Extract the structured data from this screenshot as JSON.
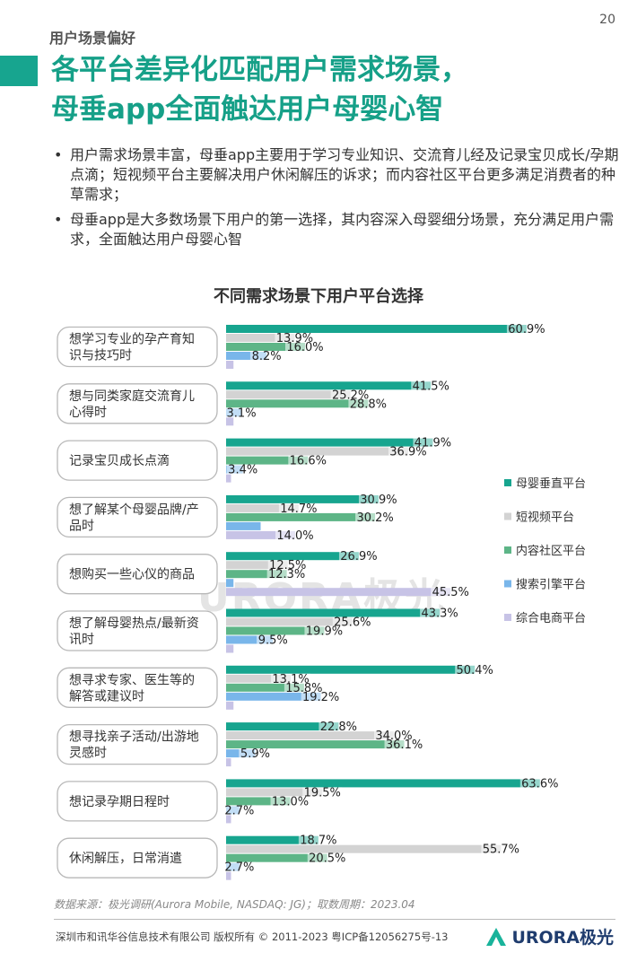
{
  "page_number": "20",
  "section_label": "用户场景偏好",
  "title_lines": [
    "各平台差异化匹配用户需求场景，",
    "母垂app全面触达用户母婴心智"
  ],
  "bullets": [
    "用户需求场景丰富，母垂app主要用于学习专业知识、交流育儿经及记录宝贝成长/孕期点滴；短视频平台主要解决用户休闲解压的诉求；而内容社区平台更多满足消费者的种草需求；",
    "母垂app是大多数场景下用户的第一选择，其内容深入母婴细分场景，充分满足用户需求，全面触达用户母婴心智"
  ],
  "watermark": "URORA极光",
  "source": "数据来源：极光调研(Aurora Mobile, NASDAQ: JG)；取数周期：2023.04",
  "footer": "深圳市和讯华谷信息技术有限公司 版权所有 © 2011-2023 粤ICP备12056275号-13",
  "logo_text": "URORA极光",
  "chart_data": {
    "type": "bar",
    "orientation": "horizontal",
    "title": "不同需求场景下用户平台选择",
    "unit": "%",
    "categories": [
      [
        "想学习专业的孕产育知",
        "识与技巧时"
      ],
      [
        "想与同类家庭交流育儿",
        "心得时"
      ],
      [
        "记录宝贝成长点滴"
      ],
      [
        "想了解某个母婴品牌/产",
        "品时"
      ],
      [
        "想购买一些心仪的商品"
      ],
      [
        "想了解母婴热点/最新资",
        "讯时"
      ],
      [
        "想寻求专家、医生等的",
        "解答或建议时"
      ],
      [
        "想寻找亲子活动/出游地",
        "灵感时"
      ],
      [
        "想记录孕期日程时"
      ],
      [
        "休闲解压，日常消遣"
      ]
    ],
    "series": [
      {
        "name": "母婴垂直平台",
        "color": "#17a58f",
        "values": [
          60.9,
          41.5,
          41.9,
          30.9,
          26.9,
          43.3,
          50.4,
          22.8,
          63.6,
          18.7
        ]
      },
      {
        "name": "短视频平台",
        "color": "#d3d3d3",
        "values": [
          13.9,
          25.2,
          36.9,
          14.7,
          12.5,
          25.6,
          13.1,
          34.0,
          19.5,
          55.7
        ]
      },
      {
        "name": "内容社区平台",
        "color": "#5db587",
        "values": [
          16.0,
          28.8,
          16.6,
          30.2,
          12.3,
          19.9,
          15.8,
          36.1,
          13.0,
          20.5
        ]
      },
      {
        "name": "搜索引擎平台",
        "color": "#79b6ea",
        "values": [
          8.2,
          3.1,
          3.4,
          7.0,
          1.5,
          9.5,
          19.2,
          5.9,
          2.7,
          2.7
        ]
      },
      {
        "name": "综合电商平台",
        "color": "#c7c3e6",
        "values": [
          1.5,
          1.5,
          1.0,
          14.0,
          45.5,
          1.5,
          1.5,
          1.0,
          1.0,
          1.0
        ]
      }
    ],
    "labels_shown": [
      [
        true,
        true,
        true,
        true,
        false
      ],
      [
        true,
        true,
        true,
        true,
        false
      ],
      [
        true,
        true,
        true,
        true,
        false
      ],
      [
        true,
        true,
        true,
        false,
        true
      ],
      [
        true,
        true,
        true,
        false,
        true
      ],
      [
        true,
        true,
        true,
        true,
        false
      ],
      [
        true,
        true,
        true,
        true,
        false
      ],
      [
        true,
        true,
        true,
        true,
        false
      ],
      [
        true,
        true,
        true,
        true,
        false
      ],
      [
        true,
        true,
        true,
        true,
        false
      ]
    ],
    "xlim": [
      0,
      70
    ],
    "legend_position": "right",
    "grid": false
  }
}
